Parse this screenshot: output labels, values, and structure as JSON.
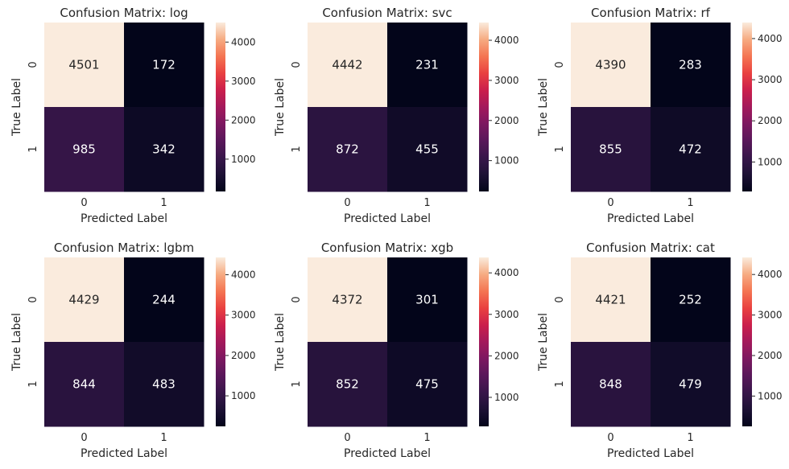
{
  "chart_data": [
    {
      "type": "heatmap",
      "title": "Confusion Matrix: log",
      "xlabel": "Predicted Label",
      "ylabel": "True Label",
      "x_categories": [
        "0",
        "1"
      ],
      "y_categories": [
        "0",
        "1"
      ],
      "values": [
        [
          4501,
          172
        ],
        [
          985,
          342
        ]
      ],
      "colorbar": {
        "range": [
          172,
          4501
        ],
        "ticks": [
          1000,
          2000,
          3000,
          4000
        ]
      }
    },
    {
      "type": "heatmap",
      "title": "Confusion Matrix: svc",
      "xlabel": "Predicted Label",
      "ylabel": "True Label",
      "x_categories": [
        "0",
        "1"
      ],
      "y_categories": [
        "0",
        "1"
      ],
      "values": [
        [
          4442,
          231
        ],
        [
          872,
          455
        ]
      ],
      "colorbar": {
        "range": [
          231,
          4442
        ],
        "ticks": [
          1000,
          2000,
          3000,
          4000
        ]
      }
    },
    {
      "type": "heatmap",
      "title": "Confusion Matrix: rf",
      "xlabel": "Predicted Label",
      "ylabel": "True Label",
      "x_categories": [
        "0",
        "1"
      ],
      "y_categories": [
        "0",
        "1"
      ],
      "values": [
        [
          4390,
          283
        ],
        [
          855,
          472
        ]
      ],
      "colorbar": {
        "range": [
          283,
          4390
        ],
        "ticks": [
          1000,
          2000,
          3000,
          4000
        ]
      }
    },
    {
      "type": "heatmap",
      "title": "Confusion Matrix: lgbm",
      "xlabel": "Predicted Label",
      "ylabel": "True Label",
      "x_categories": [
        "0",
        "1"
      ],
      "y_categories": [
        "0",
        "1"
      ],
      "values": [
        [
          4429,
          244
        ],
        [
          844,
          483
        ]
      ],
      "colorbar": {
        "range": [
          244,
          4429
        ],
        "ticks": [
          1000,
          2000,
          3000,
          4000
        ]
      }
    },
    {
      "type": "heatmap",
      "title": "Confusion Matrix: xgb",
      "xlabel": "Predicted Label",
      "ylabel": "True Label",
      "x_categories": [
        "0",
        "1"
      ],
      "y_categories": [
        "0",
        "1"
      ],
      "values": [
        [
          4372,
          301
        ],
        [
          852,
          475
        ]
      ],
      "colorbar": {
        "range": [
          301,
          4372
        ],
        "ticks": [
          1000,
          2000,
          3000,
          4000
        ]
      }
    },
    {
      "type": "heatmap",
      "title": "Confusion Matrix: cat",
      "xlabel": "Predicted Label",
      "ylabel": "True Label",
      "x_categories": [
        "0",
        "1"
      ],
      "y_categories": [
        "0",
        "1"
      ],
      "values": [
        [
          4421,
          252
        ],
        [
          848,
          479
        ]
      ],
      "colorbar": {
        "range": [
          252,
          4421
        ],
        "ticks": [
          1000,
          2000,
          3000,
          4000
        ]
      }
    }
  ]
}
